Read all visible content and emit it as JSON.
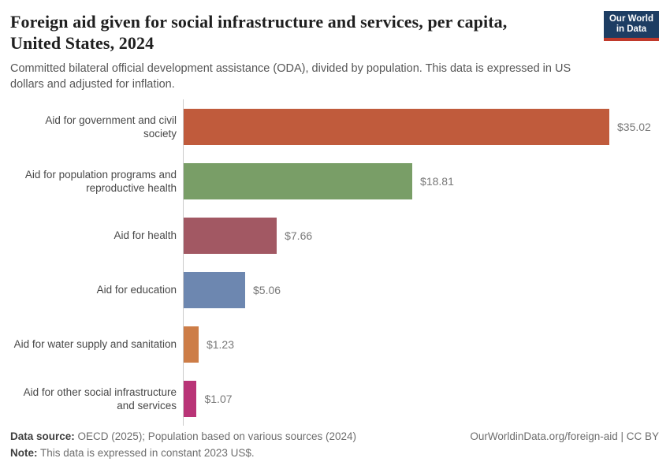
{
  "header": {
    "title_line1": "Foreign aid given for social infrastructure and services, per capita,",
    "title_line2": "United States, 2024",
    "subtitle": "Committed bilateral official development assistance (ODA), divided by population. This data is expressed in US dollars and adjusted for inflation.",
    "logo": {
      "line1": "Our World",
      "line2": "in Data",
      "bg_color": "#1d3d63",
      "accent_color": "#c0392b"
    }
  },
  "chart_data": {
    "type": "bar",
    "orientation": "horizontal",
    "title": "Foreign aid given for social infrastructure and services, per capita, United States, 2024",
    "xlabel": "",
    "ylabel": "",
    "xlim": [
      0,
      35.02
    ],
    "grid": false,
    "axis_color": "#cccccc",
    "unit": "constant 2023 US$ per capita",
    "categories": [
      "Aid for government and civil society",
      "Aid for population programs and reproductive health",
      "Aid for health",
      "Aid for education",
      "Aid for water supply and sanitation",
      "Aid for other social infrastructure and services"
    ],
    "values": [
      35.02,
      18.81,
      7.66,
      5.06,
      1.23,
      1.07
    ],
    "value_labels": [
      "$35.02",
      "$18.81",
      "$7.66",
      "$5.06",
      "$1.23",
      "$1.07"
    ],
    "colors": [
      "#c05b3c",
      "#799e67",
      "#a25863",
      "#6d87b0",
      "#cd7d47",
      "#b93477"
    ]
  },
  "footer": {
    "data_source_label": "Data source:",
    "data_source_text": " OECD (2025); Population based on various sources (2024)",
    "note_label": "Note:",
    "note_text": " This data is expressed in constant 2023 US$.",
    "link_text": "OurWorldinData.org/foreign-aid | CC BY"
  }
}
